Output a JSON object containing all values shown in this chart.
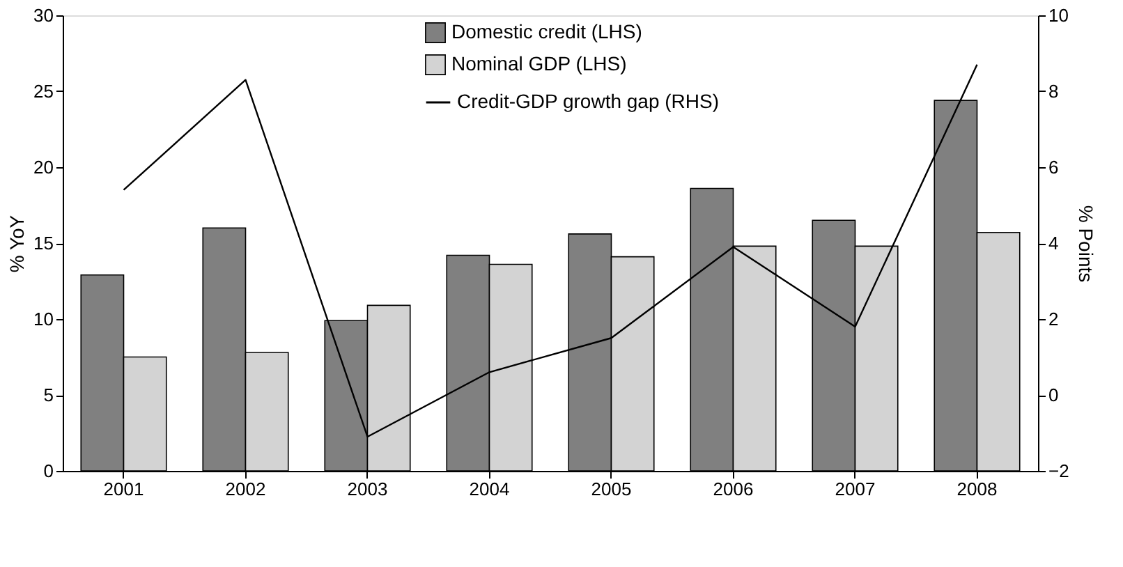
{
  "chart_data": {
    "type": "bar",
    "ylabel": "% YoY",
    "y2label": "% Points",
    "categories": [
      "2001",
      "2002",
      "2003",
      "2004",
      "2005",
      "2006",
      "2007",
      "2008"
    ],
    "series": [
      {
        "name": "Domestic credit (LHS)",
        "color": "#808080",
        "values": [
          12.9,
          16.0,
          9.9,
          14.2,
          15.6,
          18.6,
          16.5,
          24.4
        ]
      },
      {
        "name": "Nominal GDP (LHS)",
        "color": "#d3d3d3",
        "values": [
          7.5,
          7.8,
          10.9,
          13.6,
          14.1,
          14.8,
          14.8,
          15.7
        ]
      },
      {
        "name": "Credit-GDP growth gap (RHS)",
        "type": "line",
        "axis": "y2",
        "color": "#000000",
        "values": [
          5.4,
          8.3,
          -1.1,
          0.6,
          1.5,
          3.9,
          1.8,
          8.7
        ]
      }
    ],
    "ylim": [
      0,
      30
    ],
    "yticks": [
      0,
      5,
      10,
      15,
      20,
      25,
      30
    ],
    "y2lim": [
      -2,
      10
    ],
    "y2ticks": [
      -2,
      0,
      2,
      4,
      6,
      8,
      10
    ],
    "grid": false,
    "legend": "top",
    "line_style": "solid",
    "marker": "none"
  }
}
